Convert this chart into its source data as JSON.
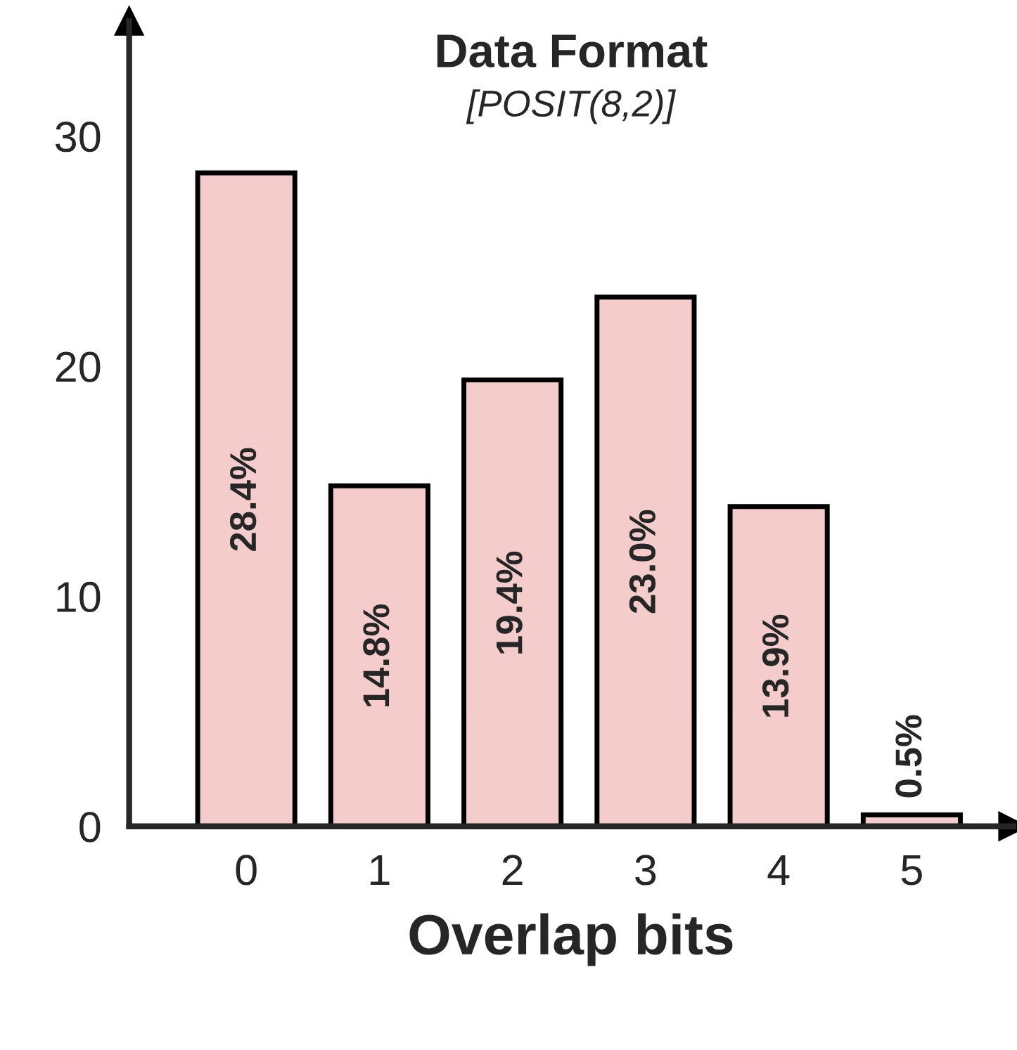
{
  "chart_data": {
    "type": "bar",
    "title": "Data Format",
    "subtitle": "[POSIT(8,2)]",
    "xlabel": "Overlap bits",
    "categories": [
      "0",
      "1",
      "2",
      "3",
      "4",
      "5"
    ],
    "values": [
      28.4,
      14.8,
      19.4,
      23.0,
      13.9,
      0.5
    ],
    "value_labels": [
      "28.4%",
      "14.8%",
      "19.4%",
      "23.0%",
      "13.9%",
      "0.5%"
    ],
    "color": "#f4cccc",
    "ylim": [
      0,
      35
    ],
    "yticks": [
      0,
      10,
      20,
      30
    ],
    "grid": false
  }
}
